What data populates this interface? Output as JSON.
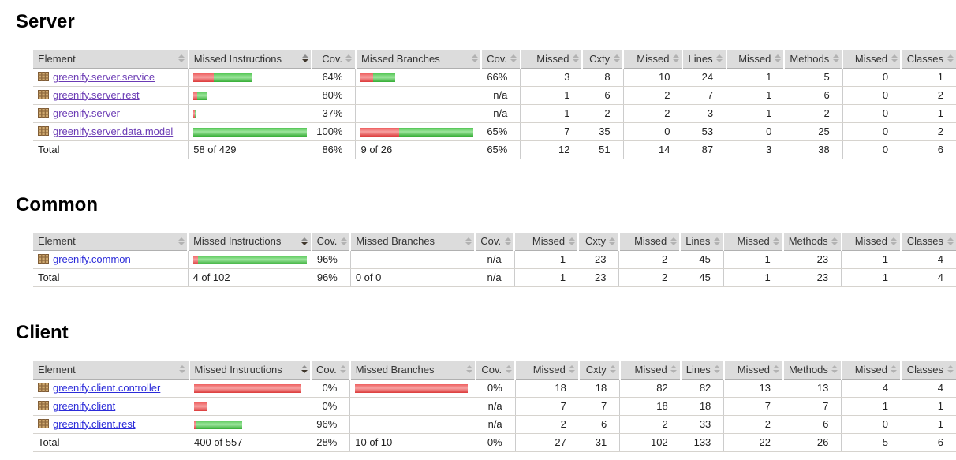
{
  "report": {
    "header_bg": "#dcdcdc",
    "link_color": "#2b2bd9",
    "link_visited_color": "#6a3ab4",
    "bar_red_color": "#dc3b3b",
    "bar_green_color": "#36ad36",
    "na_text": "n/a"
  },
  "sections": [
    {
      "title": "Server",
      "columns": [
        "Element",
        "Missed Instructions",
        "Cov.",
        "Missed Branches",
        "Cov.",
        "Missed",
        "Cxty",
        "Missed",
        "Lines",
        "Missed",
        "Methods",
        "Missed",
        "Classes"
      ],
      "sorted_column": 1,
      "rows": [
        {
          "element": "greenify.server.service",
          "visited": true,
          "instr_bar": {
            "red": 26,
            "green": 48
          },
          "instr_cov": "64%",
          "branch_bar": {
            "red": 16,
            "green": 28
          },
          "branch_cov": "66%",
          "counters": [
            "3",
            "8",
            "10",
            "24",
            "1",
            "5",
            "0",
            "1"
          ]
        },
        {
          "element": "greenify.server.rest",
          "visited": true,
          "instr_bar": {
            "red": 5,
            "green": 12
          },
          "instr_cov": "80%",
          "branch_bar": null,
          "branch_cov": "n/a",
          "counters": [
            "1",
            "6",
            "2",
            "7",
            "1",
            "6",
            "0",
            "2"
          ]
        },
        {
          "element": "greenify.server",
          "visited": true,
          "instr_bar": {
            "red": 2,
            "green": 1
          },
          "instr_cov": "37%",
          "branch_bar": null,
          "branch_cov": "n/a",
          "counters": [
            "1",
            "2",
            "2",
            "3",
            "1",
            "2",
            "0",
            "1"
          ]
        },
        {
          "element": "greenify.server.data.model",
          "visited": true,
          "instr_bar": {
            "red": 0,
            "green": 144
          },
          "instr_cov": "100%",
          "branch_bar": {
            "red": 49,
            "green": 94
          },
          "branch_cov": "65%",
          "counters": [
            "7",
            "35",
            "0",
            "53",
            "0",
            "25",
            "0",
            "2"
          ]
        }
      ],
      "total": {
        "label": "Total",
        "instr": "58 of 429",
        "instr_cov": "86%",
        "branch": "9 of 26",
        "branch_cov": "65%",
        "counters": [
          "12",
          "51",
          "14",
          "87",
          "3",
          "38",
          "0",
          "6"
        ]
      }
    },
    {
      "title": "Common",
      "columns": [
        "Element",
        "Missed Instructions",
        "Cov.",
        "Missed Branches",
        "Cov.",
        "Missed",
        "Cxty",
        "Missed",
        "Lines",
        "Missed",
        "Methods",
        "Missed",
        "Classes"
      ],
      "sorted_column": 1,
      "rows": [
        {
          "element": "greenify.common",
          "visited": false,
          "instr_bar": {
            "red": 6,
            "green": 138
          },
          "instr_cov": "96%",
          "branch_bar": null,
          "branch_cov": "n/a",
          "counters": [
            "1",
            "23",
            "2",
            "45",
            "1",
            "23",
            "1",
            "4"
          ]
        }
      ],
      "total": {
        "label": "Total",
        "instr": "4 of 102",
        "instr_cov": "96%",
        "branch": "0 of 0",
        "branch_cov": "n/a",
        "counters": [
          "1",
          "23",
          "2",
          "45",
          "1",
          "23",
          "1",
          "4"
        ]
      }
    },
    {
      "title": "Client",
      "columns": [
        "Element",
        "Missed Instructions",
        "Cov.",
        "Missed Branches",
        "Cov.",
        "Missed",
        "Cxty",
        "Missed",
        "Lines",
        "Missed",
        "Methods",
        "Missed",
        "Classes"
      ],
      "sorted_column": 1,
      "rows": [
        {
          "element": "greenify.client.controller",
          "visited": false,
          "instr_bar": {
            "red": 136,
            "green": 0
          },
          "instr_cov": "0%",
          "branch_bar": {
            "red": 143,
            "green": 0
          },
          "branch_cov": "0%",
          "counters": [
            "18",
            "18",
            "82",
            "82",
            "13",
            "13",
            "4",
            "4"
          ]
        },
        {
          "element": "greenify.client",
          "visited": false,
          "instr_bar": {
            "red": 16,
            "green": 0
          },
          "instr_cov": "0%",
          "branch_bar": null,
          "branch_cov": "n/a",
          "counters": [
            "7",
            "7",
            "18",
            "18",
            "7",
            "7",
            "1",
            "1"
          ]
        },
        {
          "element": "greenify.client.rest",
          "visited": false,
          "instr_bar": {
            "red": 2,
            "green": 59
          },
          "instr_cov": "96%",
          "branch_bar": null,
          "branch_cov": "n/a",
          "counters": [
            "2",
            "6",
            "2",
            "33",
            "2",
            "6",
            "0",
            "1"
          ]
        }
      ],
      "total": {
        "label": "Total",
        "instr": "400 of 557",
        "instr_cov": "28%",
        "branch": "10 of 10",
        "branch_cov": "0%",
        "counters": [
          "27",
          "31",
          "102",
          "133",
          "22",
          "26",
          "5",
          "6"
        ]
      }
    }
  ]
}
